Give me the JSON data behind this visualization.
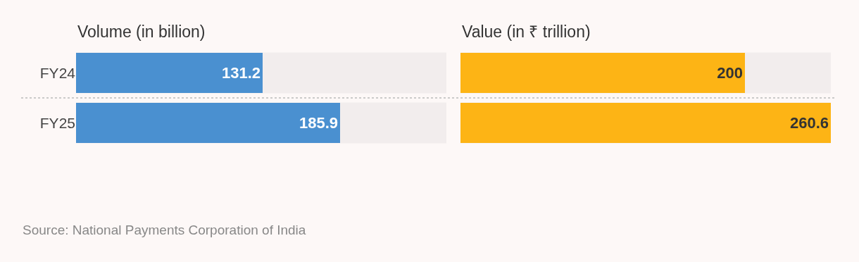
{
  "chart_data": [
    {
      "type": "bar",
      "orientation": "horizontal",
      "title": "Volume (in billion)",
      "categories": [
        "FY24",
        "FY25"
      ],
      "values": [
        131.2,
        185.9
      ],
      "color": "#4a90d0",
      "xlim": [
        0,
        260.6
      ],
      "data_labels": true,
      "tick_labels": "y",
      "annotations": [
        "Source: National Payments Corporation of India"
      ]
    },
    {
      "type": "bar",
      "orientation": "horizontal",
      "title": "Value (in ₹ trillion)",
      "categories": [
        null,
        null
      ],
      "values": [
        200,
        260.6
      ],
      "color": "#fdb415",
      "xlim": [
        0,
        260.6
      ],
      "data_labels": true,
      "tick_labels": false
    }
  ]
}
